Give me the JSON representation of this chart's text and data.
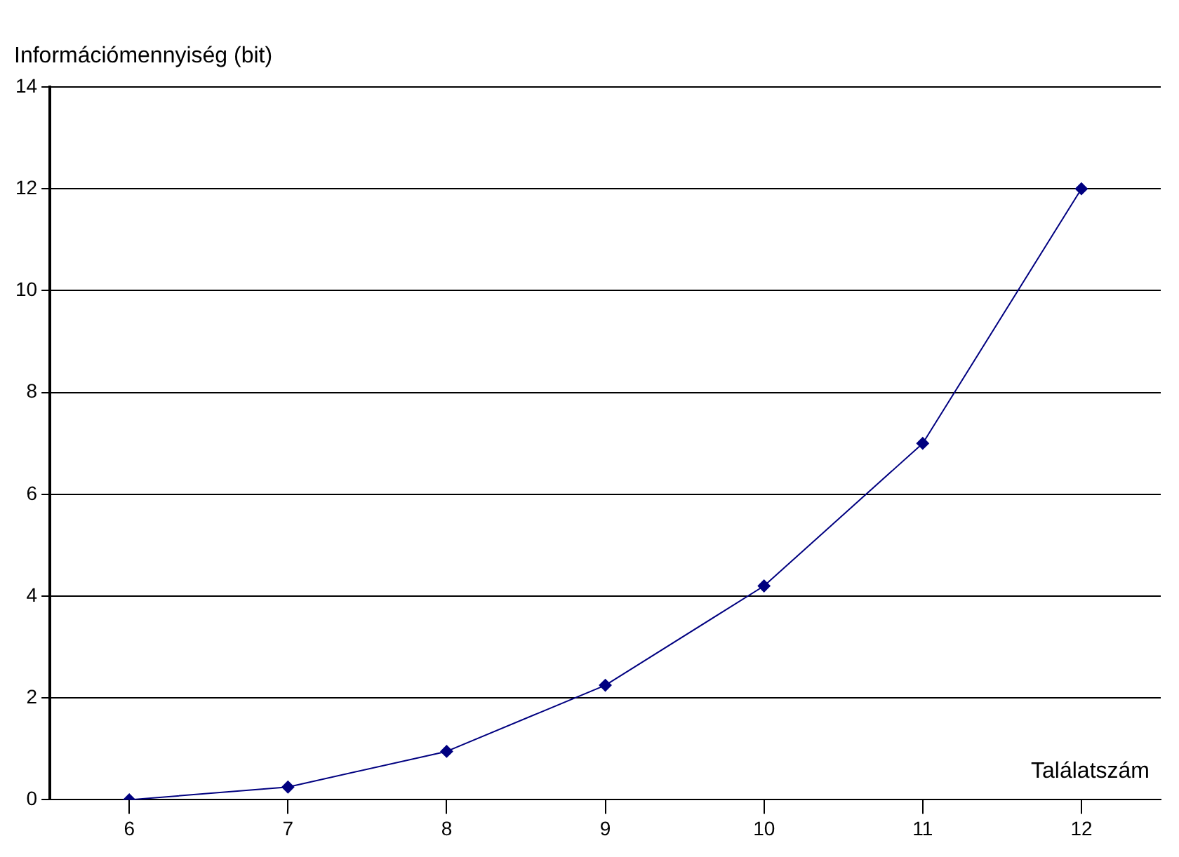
{
  "chart_data": {
    "type": "line",
    "xlabel": "Találatszám",
    "ylabel": "Információmennyiség (bit)",
    "categories": [
      "6",
      "7",
      "8",
      "9",
      "10",
      "11",
      "12"
    ],
    "series": [
      {
        "color": "#000080",
        "values": [
          0,
          0.25,
          0.95,
          2.25,
          4.2,
          7,
          12
        ]
      }
    ],
    "ylim": [
      0,
      14
    ],
    "yticks": [
      0,
      2,
      4,
      6,
      8,
      10,
      12,
      14
    ],
    "grid": "y",
    "legend": false,
    "marker": "diamond",
    "line_style": "solid"
  }
}
